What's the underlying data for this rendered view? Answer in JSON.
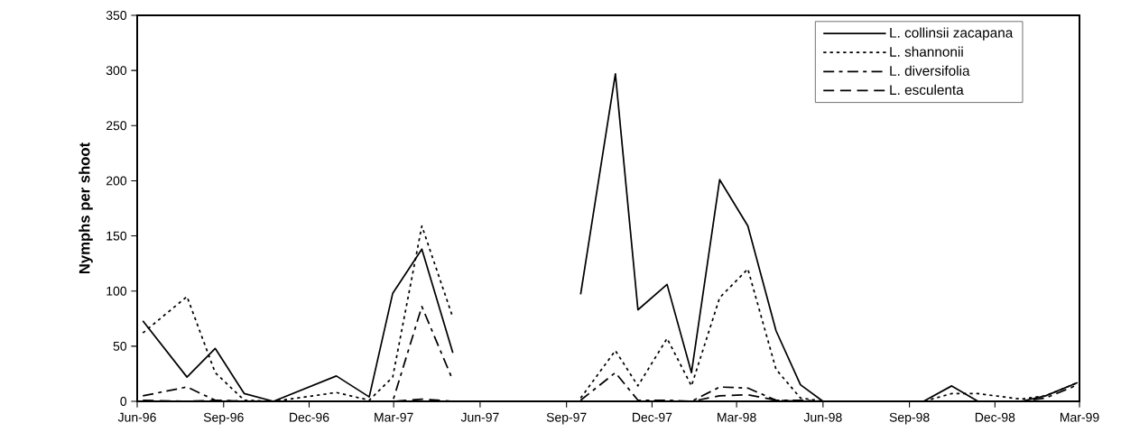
{
  "chart_data": {
    "type": "line",
    "ylabel": "Nymphs per shoot",
    "x": [
      "1996-06-07",
      "1996-07-24",
      "1996-08-23",
      "1996-09-23",
      "1996-10-24",
      "1996-12-30",
      "1997-02-03",
      "1997-02-28",
      "1997-03-31",
      "1997-05-03",
      "1997-07-15",
      "1997-09-16",
      "1997-10-23",
      "1997-11-16",
      "1997-12-17",
      "1998-01-12",
      "1998-02-11",
      "1998-03-13",
      "1998-04-12",
      "1998-05-08",
      "1998-06-01",
      "1998-09-16",
      "1998-10-16",
      "1998-11-13",
      "1998-12-29",
      "1999-01-24",
      "1999-02-27"
    ],
    "series": [
      {
        "name": "L. collinsii zacapana",
        "color": "#000000",
        "line_style": "solid",
        "values": [
          73,
          22,
          48,
          7,
          0,
          23,
          4,
          98,
          138,
          44,
          null,
          97,
          297,
          83,
          106,
          26,
          201,
          159,
          64,
          15,
          0,
          0,
          14,
          0,
          0,
          5,
          17
        ]
      },
      {
        "name": "L. shannonii",
        "color": "#000000",
        "line_style": "dotted",
        "values": [
          62,
          95,
          26,
          1,
          0,
          8,
          1,
          22,
          159,
          76,
          null,
          3,
          46,
          14,
          57,
          14,
          94,
          120,
          29,
          3,
          0,
          0,
          7,
          7,
          2,
          5,
          17
        ]
      },
      {
        "name": "L. diversifolia",
        "color": "#000000",
        "line_style": "dashdot",
        "values": [
          5,
          13,
          1,
          0,
          0,
          0,
          0,
          0,
          86,
          19,
          null,
          1,
          26,
          1,
          1,
          0,
          13,
          12,
          1,
          1,
          0,
          0,
          0,
          0,
          0,
          3,
          15
        ]
      },
      {
        "name": "L. esculenta",
        "color": "#000000",
        "line_style": "dashed",
        "values": [
          1,
          0,
          1,
          0,
          0,
          0,
          0,
          0,
          2,
          0,
          null,
          0,
          0,
          0,
          0,
          0,
          5,
          6,
          1,
          0,
          0,
          0,
          0,
          0,
          0,
          0,
          0
        ]
      }
    ],
    "xlim": [
      "1996-06",
      "1999-03"
    ],
    "xticks": [
      {
        "value": "1996-06",
        "label": "Jun-96"
      },
      {
        "value": "1996-09",
        "label": "Sep-96"
      },
      {
        "value": "1996-12",
        "label": "Dec-96"
      },
      {
        "value": "1997-03",
        "label": "Mar-97"
      },
      {
        "value": "1997-06",
        "label": "Jun-97"
      },
      {
        "value": "1997-09",
        "label": "Sep-97"
      },
      {
        "value": "1997-12",
        "label": "Dec-97"
      },
      {
        "value": "1998-03",
        "label": "Mar-98"
      },
      {
        "value": "1998-06",
        "label": "Jun-98"
      },
      {
        "value": "1998-09",
        "label": "Sep-98"
      },
      {
        "value": "1998-12",
        "label": "Dec-98"
      },
      {
        "value": "1999-03",
        "label": "Mar-99"
      }
    ],
    "ylim": [
      0,
      350
    ],
    "yticks": [
      0,
      50,
      100,
      150,
      200,
      250,
      300,
      350
    ],
    "grid": false,
    "legend": "top right",
    "marker": "none"
  }
}
